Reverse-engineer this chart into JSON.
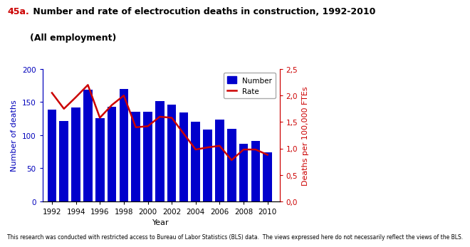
{
  "years": [
    1992,
    1993,
    1994,
    1995,
    1996,
    1997,
    1998,
    1999,
    2000,
    2001,
    2002,
    2003,
    2004,
    2005,
    2006,
    2007,
    2008,
    2009,
    2010
  ],
  "deaths": [
    139,
    122,
    142,
    169,
    126,
    143,
    170,
    136,
    136,
    152,
    146,
    134,
    120,
    109,
    124,
    110,
    87,
    91,
    74
  ],
  "rate": [
    2.05,
    1.75,
    1.97,
    2.2,
    1.58,
    1.82,
    2.0,
    1.4,
    1.42,
    1.6,
    1.58,
    1.28,
    0.98,
    1.02,
    1.05,
    0.78,
    0.98,
    0.98,
    0.88
  ],
  "bar_color": "#0000CC",
  "rate_color": "#CC0000",
  "title_prefix": "45a.",
  "title_prefix_color": "#CC0000",
  "title_main": " Number and rate of electrocution deaths in construction, 1992-2010",
  "title_line2": "(All employment)",
  "title_color": "#000000",
  "xlabel": "Year",
  "ylabel_left": "Number of deaths",
  "ylabel_left_color": "#0000BB",
  "ylabel_right": "Deaths per 100,000 FTEs",
  "ylabel_right_color": "#CC0000",
  "ylim_left": [
    0,
    200
  ],
  "ylim_right": [
    0.0,
    2.5
  ],
  "yticks_left": [
    0,
    50,
    100,
    150,
    200
  ],
  "yticks_right": [
    0.0,
    0.5,
    1.0,
    1.5,
    2.0,
    2.5
  ],
  "ytick_labels_right": [
    "0,0",
    "0,5",
    "1,0",
    "1,5",
    "2,0",
    "2,5"
  ],
  "ytick_labels_left": [
    "0",
    "50",
    "100",
    "150",
    "200"
  ],
  "xticks": [
    1992,
    1994,
    1996,
    1998,
    2000,
    2002,
    2004,
    2006,
    2008,
    2010
  ],
  "legend_number_label": "Number",
  "legend_rate_label": "Rate",
  "footnote": "This research was conducted with restricted access to Bureau of Labor Statistics (BLS) data.  The views expressed here do not necessarily reflect the views of the BLS.",
  "title_fontsize": 9,
  "axis_fontsize": 8,
  "tick_fontsize": 7.5,
  "footnote_fontsize": 5.5
}
